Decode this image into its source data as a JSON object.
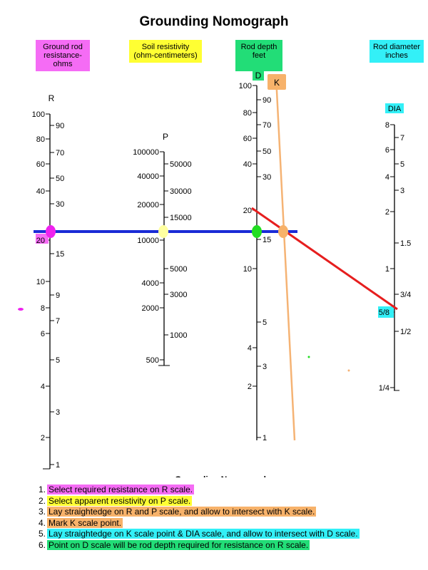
{
  "title": "Grounding Nomograph",
  "footer_title_faded": "Grounding Nomograph",
  "colors": {
    "magenta": "#f56cf5",
    "yellow": "#ffff33",
    "green": "#22dd77",
    "cyan": "#33f0f7",
    "orange": "#f7b26a",
    "blue_line": "#1a2bd6",
    "red_line": "#e61e1e",
    "orange_line": "#f5b374"
  },
  "headers": [
    {
      "id": "R",
      "lines": [
        "Ground rod",
        "resistance-ohms"
      ],
      "color": "magenta"
    },
    {
      "id": "P",
      "lines": [
        "Soil resistivity",
        "(ohm-centimeters)"
      ],
      "color": "yellow"
    },
    {
      "id": "D",
      "lines": [
        "Rod depth",
        "feet"
      ],
      "color": "green"
    },
    {
      "id": "DIA",
      "lines": [
        "Rod diameter",
        "inches"
      ],
      "color": "cyan"
    }
  ],
  "scales": {
    "R": {
      "label": "R",
      "left_ticks": [
        "100",
        "80",
        "60",
        "40",
        "20",
        "10",
        "8",
        "6",
        "4",
        "2"
      ],
      "right_ticks": [
        "90",
        "70",
        "50",
        "30",
        "15",
        "9",
        "7",
        "5",
        "3",
        "1"
      ]
    },
    "P": {
      "label": "P",
      "left_ticks": [
        "100000",
        "40000",
        "20000",
        "10000",
        "4000",
        "2000",
        "500"
      ],
      "right_ticks": [
        "50000",
        "30000",
        "15000",
        "5000",
        "3000",
        "1000"
      ]
    },
    "D": {
      "label": "D",
      "left_ticks": [
        "100",
        "80",
        "60",
        "40",
        "20",
        "10",
        "4",
        "2"
      ],
      "right_ticks": [
        "90",
        "70",
        "50",
        "30",
        "15",
        "5",
        "3",
        "1"
      ]
    },
    "K": {
      "label": "K"
    },
    "DIA": {
      "label": "DIA",
      "left_ticks": [
        "8",
        "6",
        "4",
        "2",
        "1",
        "5/8",
        "1/4"
      ],
      "right_ticks": [
        "7",
        "5",
        "3",
        "1.5",
        "3/4",
        "1/2"
      ]
    }
  },
  "steps": [
    {
      "num": "1.",
      "text": "Select required resistance on R scale.",
      "color": "magenta"
    },
    {
      "num": "2.",
      "text": "Select apparent resistivity on P scale.",
      "color": "yellow"
    },
    {
      "num": "3.",
      "text": "Lay straightedge on R and P scale, and allow to intersect with K scale.",
      "color": "orange"
    },
    {
      "num": "4.",
      "text": "Mark K scale point.",
      "color": "orange"
    },
    {
      "num": "5.",
      "text": "Lay straightedge on K scale point & DIA scale, and allow to intersect with D scale.",
      "color": "cyan"
    },
    {
      "num": "6.",
      "text": "Point on D scale will be rod depth required for resistance on R scale.",
      "color": "green"
    }
  ]
}
